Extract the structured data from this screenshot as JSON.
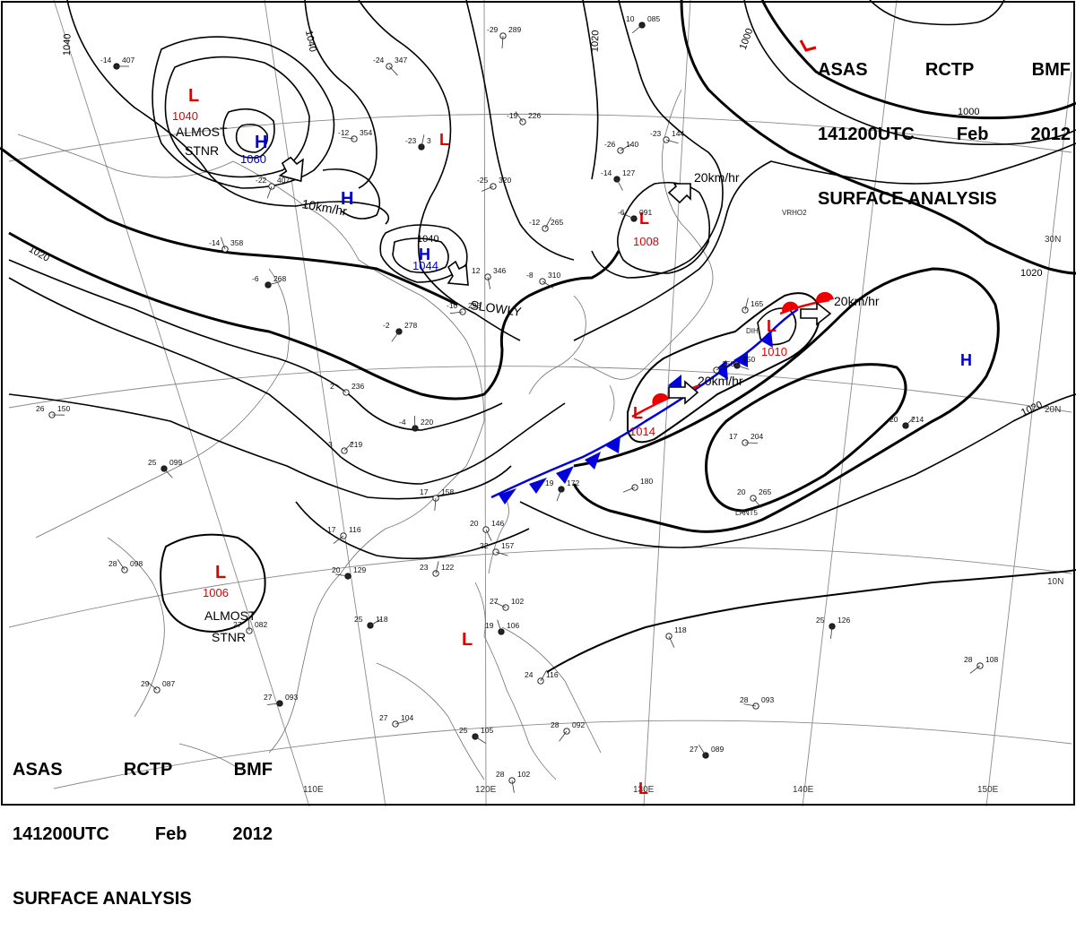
{
  "header": {
    "agency": "ASAS",
    "station": "RCTP",
    "office": "BMF",
    "time": "141200UTC",
    "month": "Feb",
    "year": "2012",
    "title": "SURFACE ANALYSIS"
  },
  "colors": {
    "high": "#0000cc",
    "low": "#e00000",
    "cold_front": "#0000dd",
    "warm_front": "#ee0000",
    "isobar": "#000000",
    "grid": "#888888",
    "coast": "#777777"
  },
  "grid_labels": {
    "lon": [
      "110E",
      "120E",
      "130E",
      "140E",
      "150E"
    ],
    "lat": [
      "30N",
      "20N",
      "10N"
    ]
  },
  "isobar_labels": [
    {
      "id": "nw-1040",
      "text": "1040"
    },
    {
      "id": "n-1040",
      "text": "1040"
    },
    {
      "id": "n-1020",
      "text": "1020"
    },
    {
      "id": "ne-1000a",
      "text": "1000"
    },
    {
      "id": "ne-1000b",
      "text": "1000"
    },
    {
      "id": "w-1020",
      "text": "1020"
    },
    {
      "id": "e-1020a",
      "text": "1020"
    },
    {
      "id": "e-1020b",
      "text": "1020"
    },
    {
      "id": "c-1040",
      "text": "1040"
    }
  ],
  "pressure_centers": [
    {
      "id": "low-1040",
      "type": "L",
      "value": "1040"
    },
    {
      "id": "high-1060",
      "type": "H",
      "value": "1060"
    },
    {
      "id": "high-2",
      "type": "H",
      "value": ""
    },
    {
      "id": "low-3",
      "type": "L",
      "value": ""
    },
    {
      "id": "high-1044",
      "type": "H",
      "value": "1044"
    },
    {
      "id": "low-1008",
      "type": "L",
      "value": "1008"
    },
    {
      "id": "low-1010",
      "type": "L",
      "value": "1010"
    },
    {
      "id": "low-1014",
      "type": "L",
      "value": "1014"
    },
    {
      "id": "high-east",
      "type": "H",
      "value": ""
    },
    {
      "id": "low-1006",
      "type": "L",
      "value": "1006"
    },
    {
      "id": "low-phil",
      "type": "L",
      "value": ""
    },
    {
      "id": "low-south",
      "type": "L",
      "value": ""
    }
  ],
  "annotations": [
    {
      "id": "almost-stnr-1",
      "lines": [
        "ALMOST",
        "STNR"
      ]
    },
    {
      "id": "almost-stnr-2",
      "lines": [
        "ALMOST",
        "STNR"
      ]
    },
    {
      "id": "motion-10",
      "lines": [
        "10km/hr"
      ]
    },
    {
      "id": "motion-slowly",
      "lines": [
        "SLOWLY"
      ]
    },
    {
      "id": "motion-20a",
      "lines": [
        "20km/hr"
      ]
    },
    {
      "id": "motion-20b",
      "lines": [
        "20km/hr"
      ]
    },
    {
      "id": "motion-20c",
      "lines": [
        "20km/hr"
      ]
    }
  ],
  "station_obs": [
    {
      "t": "-14",
      "p": "407"
    },
    {
      "t": "-24",
      "p": "347"
    },
    {
      "t": "-29",
      "p": "289"
    },
    {
      "t": "10",
      "p": "085"
    },
    {
      "t": "-12",
      "p": "354"
    },
    {
      "t": "-19",
      "p": "226"
    },
    {
      "t": "-23",
      "p": "3"
    },
    {
      "t": "-26",
      "p": "140"
    },
    {
      "t": "-23",
      "p": "144"
    },
    {
      "t": "-14",
      "p": "127"
    },
    {
      "t": "-22",
      "p": "407"
    },
    {
      "t": "-25",
      "p": "320"
    },
    {
      "t": "-6",
      "p": "091"
    },
    {
      "t": "-14",
      "p": "358"
    },
    {
      "t": "-12",
      "p": "265"
    },
    {
      "t": "-6",
      "p": "268"
    },
    {
      "t": "-8",
      "p": "310"
    },
    {
      "t": "12",
      "p": "346"
    },
    {
      "t": "-2",
      "p": "278"
    },
    {
      "t": "-10",
      "p": "296"
    },
    {
      "t": "2",
      "p": "236"
    },
    {
      "t": "-4",
      "p": "220"
    },
    {
      "t": "3",
      "p": "219"
    },
    {
      "t": "26",
      "p": "150"
    },
    {
      "t": "25",
      "p": "099"
    },
    {
      "t": "17",
      "p": "158"
    },
    {
      "t": "17",
      "p": "116"
    },
    {
      "t": "20",
      "p": "129"
    },
    {
      "t": "28",
      "p": "098"
    },
    {
      "t": "23",
      "p": "122"
    },
    {
      "t": "25",
      "p": "118"
    },
    {
      "t": "22",
      "p": "157"
    },
    {
      "t": "20",
      "p": "146"
    },
    {
      "t": "19",
      "p": "172"
    },
    {
      "t": "",
      "p": "180"
    },
    {
      "t": "27",
      "p": "102"
    },
    {
      "t": "19",
      "p": "106"
    },
    {
      "t": "24",
      "p": "116"
    },
    {
      "t": "27",
      "p": "104"
    },
    {
      "t": "25",
      "p": "105"
    },
    {
      "t": "28",
      "p": "102"
    },
    {
      "t": "28",
      "p": "092"
    },
    {
      "t": "27",
      "p": "093"
    },
    {
      "t": "29",
      "p": "087"
    },
    {
      "t": "27",
      "p": "082"
    },
    {
      "t": "20",
      "p": "214"
    },
    {
      "t": "17",
      "p": "204"
    },
    {
      "t": "20",
      "p": "265"
    },
    {
      "t": "25",
      "p": "126"
    },
    {
      "t": "28",
      "p": "108"
    },
    {
      "t": "28",
      "p": "093"
    },
    {
      "t": "27",
      "p": "089"
    },
    {
      "t": "",
      "p": "165"
    },
    {
      "t": "",
      "p": "150"
    },
    {
      "t": "",
      "p": "150"
    },
    {
      "t": "",
      "p": "118"
    }
  ],
  "station_ids": [
    "VRHO2",
    "LANT5",
    "DIH"
  ]
}
